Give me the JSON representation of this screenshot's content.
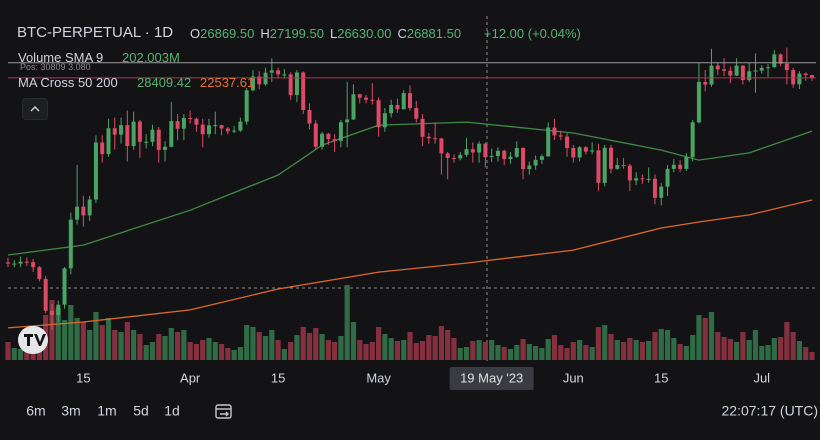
{
  "header": {
    "symbol": "BTC-PERPETUAL · 1D",
    "ohlc": [
      {
        "key": "O",
        "value": "26869.50"
      },
      {
        "key": "H",
        "value": "27199.50"
      },
      {
        "key": "L",
        "value": "26630.00"
      },
      {
        "key": "C",
        "value": "26881.50"
      }
    ],
    "change": "+12.00 (+0.04%)",
    "volume_label": "Volume SMA 9",
    "volume_value": "202.003M",
    "ma_label": "MA Cross 50 200",
    "ma_fast": "28409.42",
    "ma_slow": "22537.61"
  },
  "chart_data": {
    "type": "candlestick",
    "up_color": "#4aa564",
    "down_color": "#dc4a66",
    "volume_up_color": "#2f6b45",
    "volume_down_color": "#84303f",
    "xlim": [
      0,
      128
    ],
    "ylim": [
      18290,
      33030
    ],
    "volume_lim": [
      0,
      1100
    ],
    "xticks": [
      {
        "value": 12,
        "label": "15"
      },
      {
        "value": 29,
        "label": "Apr"
      },
      {
        "value": 43,
        "label": "15"
      },
      {
        "value": 59,
        "label": "May"
      },
      {
        "value": 90,
        "label": "Jun"
      },
      {
        "value": 104,
        "label": "15"
      },
      {
        "value": 120,
        "label": "Jul"
      }
    ],
    "crosshair": {
      "value": 77,
      "label": "19 May '23"
    },
    "position": {
      "value": 30809,
      "label": "Pos: 30809",
      "size": "3.080"
    },
    "open": [
      22400,
      22350,
      22350,
      22430,
      22410,
      22200,
      21700,
      20360,
      20190,
      20620,
      22150,
      24200,
      24750,
      24380,
      25050,
      27450,
      26960,
      28050,
      27780,
      28180,
      27300,
      28330,
      27480,
      27480,
      27990,
      27140,
      27270,
      28350,
      28030,
      28480,
      28450,
      28200,
      27800,
      28170,
      28180,
      28040,
      27920,
      27950,
      28330,
      29650,
      30230,
      29900,
      30390,
      30490,
      30320,
      30320,
      29450,
      30400,
      28820,
      28250,
      27270,
      27820,
      27590,
      27520,
      28300,
      28420,
      29480,
      29340,
      29250,
      29230,
      28090,
      28680,
      29030,
      28850,
      29530,
      28900,
      28450,
      27690,
      27630,
      27620,
      26990,
      26800,
      26780,
      26930,
      27170,
      27030,
      27400,
      26870,
      26880,
      27100,
      26750,
      26850,
      27220,
      26330,
      26480,
      26720,
      26870,
      28080,
      27750,
      27700,
      27220,
      26820,
      27250,
      27070,
      27120,
      25750,
      27230,
      26340,
      26500,
      26480,
      25850,
      25940,
      25900,
      25920,
      25120,
      25590,
      26340,
      26510,
      26340,
      26840,
      28300,
      30000,
      29890,
      30690,
      30530,
      30470,
      30270,
      30690,
      30080,
      30450,
      30480,
      30590,
      30620,
      31160,
      30770,
      30500,
      29900,
      30350,
      30290
    ],
    "high": [
      22600,
      22500,
      22650,
      22600,
      22550,
      22250,
      21830,
      20650,
      20800,
      22200,
      24500,
      26500,
      25200,
      25200,
      27750,
      27750,
      28450,
      28500,
      28500,
      28800,
      28750,
      28400,
      27800,
      28200,
      28100,
      27500,
      29150,
      28650,
      28650,
      28800,
      28500,
      28450,
      28450,
      28750,
      28200,
      28100,
      28150,
      28500,
      29750,
      30500,
      30450,
      30600,
      31000,
      30600,
      30550,
      30400,
      30500,
      30450,
      29100,
      28400,
      27900,
      27850,
      27800,
      28400,
      30000,
      29900,
      29500,
      29450,
      29950,
      29350,
      28900,
      29250,
      29300,
      29650,
      29850,
      29200,
      28650,
      27850,
      28300,
      27650,
      27050,
      26950,
      27050,
      27650,
      27450,
      27500,
      27450,
      27200,
      27250,
      27150,
      27050,
      27500,
      27250,
      26650,
      26900,
      26950,
      28300,
      28450,
      27950,
      27850,
      27350,
      27300,
      27300,
      27450,
      27400,
      27350,
      27350,
      26800,
      26800,
      26550,
      26200,
      26100,
      26400,
      26100,
      25750,
      26500,
      26750,
      26700,
      27000,
      28400,
      30800,
      30500,
      31400,
      30800,
      31000,
      30650,
      31000,
      30700,
      30800,
      31200,
      30700,
      30750,
      31350,
      31200,
      31450,
      30600,
      30450,
      30400,
      30300
    ],
    "low": [
      22200,
      22200,
      22200,
      22250,
      22000,
      21600,
      20250,
      19550,
      19900,
      20450,
      21900,
      24000,
      23900,
      24150,
      24900,
      26600,
      26850,
      27150,
      27400,
      26650,
      27150,
      26800,
      27200,
      27300,
      26600,
      26650,
      27250,
      27550,
      27550,
      28250,
      27900,
      27250,
      27650,
      27800,
      27750,
      27800,
      27850,
      27900,
      28200,
      29600,
      29700,
      29850,
      30000,
      30150,
      30150,
      29250,
      29150,
      28650,
      28000,
      27150,
      27150,
      27350,
      27050,
      27250,
      27250,
      28400,
      29100,
      29100,
      29050,
      27700,
      27900,
      28500,
      28700,
      28850,
      28800,
      28300,
      27300,
      27400,
      27400,
      26100,
      25900,
      26600,
      26700,
      26850,
      26600,
      26600,
      26400,
      26630,
      26650,
      26500,
      26550,
      26800,
      25900,
      26100,
      26300,
      26550,
      26850,
      27550,
      27550,
      26850,
      26600,
      26650,
      26950,
      26950,
      25400,
      25600,
      26150,
      26300,
      26350,
      25400,
      25650,
      25700,
      25750,
      24850,
      24800,
      25200,
      26200,
      26200,
      26250,
      26650,
      28250,
      29600,
      29800,
      30300,
      30250,
      29950,
      30250,
      29900,
      30000,
      29550,
      30350,
      30200,
      30600,
      30650,
      29900,
      29750,
      29700,
      30050,
      30050
    ],
    "close": [
      22350,
      22350,
      22430,
      22410,
      22200,
      21700,
      20360,
      20190,
      20620,
      22150,
      24200,
      24750,
      24380,
      25050,
      27450,
      26960,
      28050,
      27780,
      28180,
      27300,
      28330,
      27480,
      27480,
      27990,
      27140,
      27270,
      28350,
      28030,
      28480,
      28450,
      28200,
      27800,
      28170,
      28180,
      28040,
      27920,
      27950,
      28330,
      29650,
      30230,
      29900,
      30390,
      30490,
      30320,
      30320,
      29450,
      30400,
      28820,
      28250,
      27270,
      27820,
      27590,
      27520,
      28300,
      28420,
      29480,
      29340,
      29250,
      29230,
      28090,
      28680,
      29030,
      28850,
      29530,
      28900,
      28450,
      27690,
      27630,
      27620,
      26990,
      26800,
      26780,
      26930,
      27170,
      27030,
      27400,
      26830,
      26880,
      27100,
      26750,
      26850,
      27220,
      26330,
      26480,
      26720,
      26870,
      28080,
      27750,
      27700,
      27220,
      26820,
      27250,
      27070,
      27120,
      25750,
      27230,
      26340,
      26500,
      26480,
      25850,
      25940,
      25900,
      25920,
      25120,
      25590,
      26340,
      26510,
      26340,
      26840,
      28300,
      30000,
      29890,
      30690,
      30530,
      30470,
      30270,
      30690,
      30080,
      30450,
      30480,
      30590,
      30620,
      31160,
      30770,
      30500,
      29900,
      30350,
      30290,
      30170
    ],
    "volume": [
      180,
      120,
      110,
      150,
      200,
      300,
      450,
      600,
      520,
      400,
      550,
      420,
      380,
      300,
      480,
      350,
      420,
      300,
      280,
      380,
      300,
      260,
      150,
      180,
      260,
      240,
      320,
      280,
      300,
      180,
      160,
      200,
      220,
      180,
      160,
      120,
      100,
      130,
      350,
      330,
      280,
      240,
      300,
      200,
      110,
      180,
      250,
      330,
      270,
      320,
      260,
      200,
      180,
      240,
      750,
      380,
      200,
      160,
      180,
      330,
      260,
      220,
      190,
      200,
      280,
      170,
      190,
      250,
      240,
      340,
      300,
      220,
      120,
      130,
      190,
      200,
      180,
      200,
      150,
      130,
      110,
      150,
      210,
      160,
      140,
      120,
      210,
      250,
      150,
      120,
      180,
      200,
      150,
      130,
      330,
      350,
      260,
      200,
      180,
      220,
      200,
      180,
      190,
      280,
      310,
      300,
      220,
      160,
      140,
      250,
      450,
      420,
      480,
      280,
      230,
      210,
      180,
      280,
      200,
      300,
      140,
      150,
      220,
      230,
      380,
      280,
      190,
      130,
      80
    ],
    "series": [
      {
        "color": "#3f8a45",
        "x": [
          0,
          12,
          29,
          43,
          50,
          59,
          73,
          90,
          104,
          110,
          118,
          128
        ],
        "values": [
          22710,
          23130,
          24600,
          26080,
          27340,
          28180,
          28310,
          27850,
          27130,
          26710,
          27010,
          27930
        ]
      },
      {
        "color": "#e0672e",
        "x": [
          0,
          12,
          29,
          43,
          59,
          73,
          90,
          104,
          110,
          118,
          128
        ],
        "values": [
          19640,
          19890,
          20400,
          21280,
          21990,
          22370,
          22920,
          23850,
          24100,
          24400,
          25030
        ]
      }
    ],
    "toolbar": [
      "6m",
      "3m",
      "1m",
      "5d",
      "1d"
    ],
    "clock": "22:07:17 (UTC)"
  }
}
